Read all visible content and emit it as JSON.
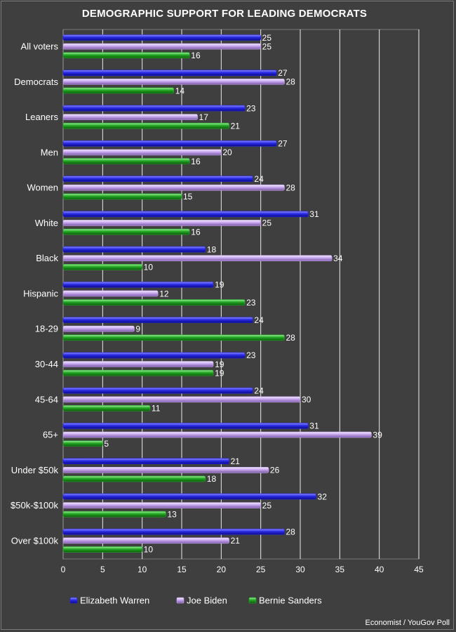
{
  "chart_data": {
    "type": "bar",
    "orientation": "horizontal",
    "title": "DEMOGRAPHIC SUPPORT FOR LEADING DEMOCRATS",
    "source": "Economist / YouGov Poll",
    "categories": [
      "All voters",
      "Democrats",
      "Leaners",
      "Men",
      "Women",
      "White",
      "Black",
      "Hispanic",
      "18-29",
      "30-44",
      "45-64",
      "65+",
      "Under $50k",
      "$50k-$100k",
      "Over $100k"
    ],
    "series": [
      {
        "name": "Elizabeth Warren",
        "color": "#2222dd",
        "values": [
          25,
          27,
          23,
          27,
          24,
          31,
          18,
          19,
          24,
          23,
          24,
          31,
          21,
          32,
          28
        ]
      },
      {
        "name": "Joe Biden",
        "color": "#c7a6ee",
        "values": [
          25,
          28,
          17,
          20,
          28,
          25,
          34,
          12,
          9,
          19,
          30,
          39,
          26,
          25,
          21
        ]
      },
      {
        "name": "Bernie Sanders",
        "color": "#23a823",
        "values": [
          16,
          14,
          21,
          16,
          15,
          16,
          10,
          23,
          28,
          19,
          11,
          5,
          18,
          13,
          10
        ]
      }
    ],
    "xlim": [
      0,
      45
    ],
    "xticks": [
      0,
      5,
      10,
      15,
      20,
      25,
      30,
      35,
      40,
      45
    ],
    "grid": true,
    "legend_position": "bottom"
  }
}
